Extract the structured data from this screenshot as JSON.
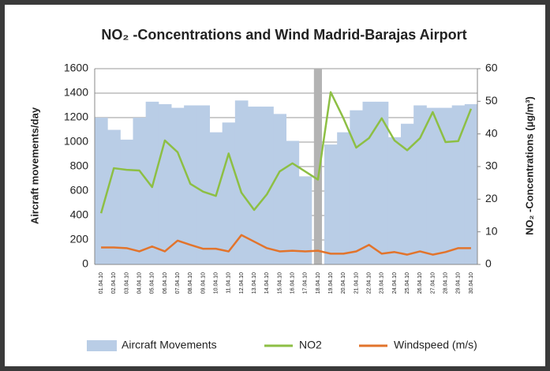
{
  "chart_data": {
    "type": "combo",
    "title": "NO₂ -Concentrations and Wind Madrid-Barajas Airport",
    "y_label": "Aircraft movements/day",
    "y2_label": "NO₂ -Concentrations  (µg/m³)",
    "categories": [
      "01.04.10",
      "02.04.10",
      "03.04.10",
      "04.04.10",
      "05.04.10",
      "06.04.10",
      "07.04.10",
      "08.04.10",
      "09.04.10",
      "10.04.10",
      "11.04.10",
      "12.04.10",
      "13.04.10",
      "14.04.10",
      "15.04.10",
      "16.04.10",
      "17.04.10",
      "18.04.10",
      "19.04.10",
      "20.04.10",
      "21.04.10",
      "22.04.10",
      "23.04.10",
      "24.04.10",
      "25.04.10",
      "26.04.10",
      "27.04.10",
      "28.04.10",
      "29.04.10",
      "30.04.10"
    ],
    "series": [
      {
        "name": "Aircraft Movements",
        "type": "area",
        "color": "#b9cde6",
        "axis": "y",
        "values": [
          1200,
          1100,
          1020,
          1200,
          1330,
          1310,
          1280,
          1300,
          1300,
          1080,
          1160,
          1340,
          1290,
          1290,
          1230,
          1010,
          720,
          null,
          980,
          1080,
          1260,
          1330,
          1330,
          1040,
          1150,
          1300,
          1280,
          1280,
          1300,
          1310
        ]
      },
      {
        "name": "NO2",
        "type": "line",
        "color": "#8dbf44",
        "axis": "y2",
        "values": [
          15.7,
          29.5,
          29,
          28.8,
          23.7,
          38,
          34.4,
          24.7,
          22.3,
          21,
          34,
          22,
          16.7,
          21.5,
          28.5,
          31,
          28.5,
          26,
          52.8,
          44.8,
          35.8,
          38.7,
          44.8,
          38,
          35,
          38.7,
          46.7,
          37.5,
          37.8,
          47.7
        ]
      },
      {
        "name": "Windspeed (m/s)",
        "type": "line",
        "color": "#e2742c",
        "axis": "y2",
        "values": [
          5.2,
          5.2,
          5,
          4,
          5.5,
          4,
          7.3,
          6,
          4.8,
          4.8,
          4,
          9,
          7,
          5,
          4,
          4.2,
          4,
          4.2,
          3.3,
          3.3,
          4,
          6,
          3.3,
          3.8,
          3,
          4,
          3,
          3.8,
          5,
          5
        ]
      }
    ],
    "ylim": [
      0,
      1600
    ],
    "yticks": [
      0,
      200,
      400,
      600,
      800,
      1000,
      1200,
      1400,
      1600
    ],
    "y2lim": [
      0,
      60
    ],
    "y2ticks": [
      0,
      10,
      20,
      30,
      40,
      50,
      60
    ],
    "grid": true
  }
}
